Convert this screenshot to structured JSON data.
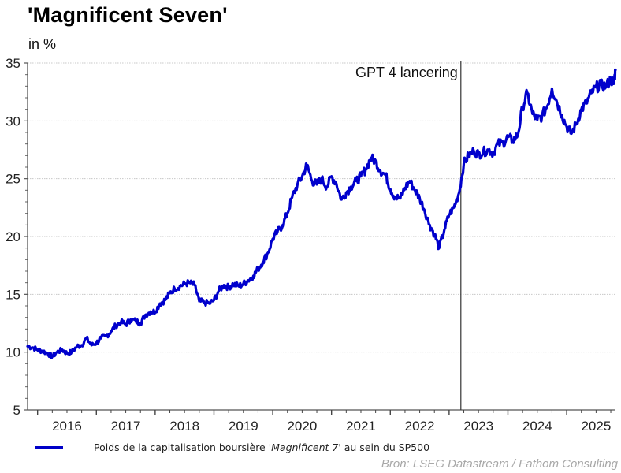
{
  "header": {
    "title": "'Magnificent Seven'",
    "unit_label": "in %"
  },
  "legend": {
    "prefix": "Poids de la capitalisation boursière ",
    "italic": "'Magnificent 7'",
    "suffix": " au sein du SP500"
  },
  "source": "Bron: LSEG Datastream / Fathom Consulting",
  "chart_data": {
    "type": "line",
    "title": "'Magnificent Seven'",
    "ylabel": "in %",
    "xlabel": "",
    "ylim": [
      5,
      35
    ],
    "xlim": [
      2015.83,
      2025.83
    ],
    "yticks": [
      5,
      10,
      15,
      20,
      25,
      30,
      35
    ],
    "xtick_labels": [
      "2016",
      "2017",
      "2018",
      "2019",
      "2020",
      "2021",
      "2022",
      "2023",
      "2024",
      "2025"
    ],
    "grid": "horizontal dotted",
    "legend_position": "bottom-left",
    "colors": {
      "series": "#0000cc",
      "event_line": "#333333",
      "grid": "#c8c8c8"
    },
    "annotation": {
      "label": "GPT 4 lancering",
      "x": 2023.2
    },
    "series": [
      {
        "name": "Poids de la capitalisation boursière 'Magnificent 7' au sein du SP500",
        "x": [
          2015.83,
          2015.92,
          2016.0,
          2016.08,
          2016.17,
          2016.25,
          2016.33,
          2016.42,
          2016.5,
          2016.58,
          2016.67,
          2016.75,
          2016.83,
          2016.92,
          2017.0,
          2017.08,
          2017.17,
          2017.25,
          2017.33,
          2017.42,
          2017.5,
          2017.58,
          2017.67,
          2017.75,
          2017.83,
          2017.92,
          2018.0,
          2018.08,
          2018.17,
          2018.25,
          2018.33,
          2018.42,
          2018.5,
          2018.58,
          2018.67,
          2018.75,
          2018.83,
          2018.92,
          2019.0,
          2019.08,
          2019.17,
          2019.25,
          2019.33,
          2019.42,
          2019.5,
          2019.58,
          2019.67,
          2019.75,
          2019.83,
          2019.92,
          2020.0,
          2020.08,
          2020.17,
          2020.25,
          2020.33,
          2020.42,
          2020.5,
          2020.58,
          2020.67,
          2020.75,
          2020.83,
          2020.92,
          2021.0,
          2021.08,
          2021.17,
          2021.25,
          2021.33,
          2021.42,
          2021.5,
          2021.58,
          2021.67,
          2021.75,
          2021.83,
          2021.92,
          2022.0,
          2022.08,
          2022.17,
          2022.25,
          2022.33,
          2022.42,
          2022.5,
          2022.58,
          2022.67,
          2022.75,
          2022.83,
          2022.92,
          2023.0,
          2023.08,
          2023.17,
          2023.25,
          2023.33,
          2023.42,
          2023.5,
          2023.58,
          2023.67,
          2023.75,
          2023.83,
          2023.92,
          2024.0,
          2024.08,
          2024.17,
          2024.25,
          2024.33,
          2024.42,
          2024.5,
          2024.58,
          2024.67,
          2024.75,
          2024.83,
          2024.92,
          2025.0,
          2025.08,
          2025.17,
          2025.25,
          2025.33,
          2025.42,
          2025.5,
          2025.58,
          2025.67,
          2025.75,
          2025.8,
          2025.83
        ],
        "values": [
          10.5,
          10.4,
          10.2,
          10.1,
          9.9,
          9.6,
          10.0,
          10.2,
          9.9,
          10.0,
          10.5,
          10.6,
          11.2,
          10.6,
          10.8,
          11.2,
          11.4,
          11.8,
          12.3,
          12.6,
          12.4,
          12.8,
          12.7,
          12.5,
          13.2,
          13.5,
          13.5,
          14.2,
          14.5,
          15.1,
          15.5,
          15.7,
          15.9,
          16.0,
          15.8,
          14.4,
          14.3,
          14.2,
          14.5,
          15.3,
          15.8,
          15.6,
          15.9,
          15.7,
          15.9,
          16.2,
          16.6,
          17.2,
          17.8,
          18.6,
          19.8,
          20.4,
          21.0,
          22.0,
          23.4,
          24.5,
          25.2,
          26.2,
          24.8,
          24.5,
          25.0,
          24.3,
          25.2,
          24.6,
          23.2,
          23.8,
          24.3,
          24.8,
          25.2,
          25.8,
          26.8,
          26.5,
          25.7,
          25.3,
          24.1,
          23.4,
          23.3,
          24.2,
          24.8,
          24.0,
          23.3,
          22.3,
          21.0,
          20.2,
          19.0,
          20.6,
          21.9,
          22.5,
          23.8,
          26.3,
          27.0,
          27.4,
          27.1,
          27.3,
          27.5,
          27.2,
          28.0,
          28.1,
          28.6,
          28.3,
          28.8,
          31.2,
          32.4,
          30.6,
          30.1,
          30.4,
          31.3,
          32.8,
          31.7,
          30.5,
          29.5,
          28.9,
          29.8,
          31.0,
          31.5,
          32.4,
          32.9,
          33.1,
          33.0,
          33.6,
          33.2,
          34.4
        ]
      }
    ]
  }
}
